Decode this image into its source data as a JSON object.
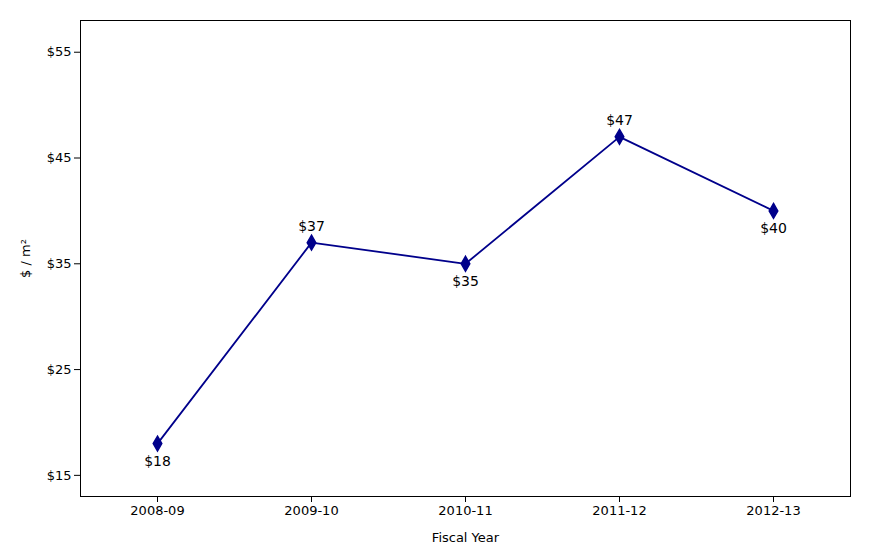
{
  "chart_data": {
    "type": "line",
    "categories": [
      "2008-09",
      "2009-10",
      "2010-11",
      "2011-12",
      "2012-13"
    ],
    "values": [
      18,
      37,
      35,
      47,
      40
    ],
    "value_labels": [
      "$18",
      "$37",
      "$35",
      "$47",
      "$40"
    ],
    "data_labels": true,
    "color": "#00008B",
    "marker": "diamond",
    "xlabel": "Fiscal Year",
    "ylabel": "$ / m²",
    "ylim": [
      13,
      58
    ],
    "yticks": [
      {
        "value": 15,
        "label": "$15"
      },
      {
        "value": 25,
        "label": "$25"
      },
      {
        "value": 35,
        "label": "$35"
      },
      {
        "value": 45,
        "label": "$45"
      },
      {
        "value": 55,
        "label": "$55"
      }
    ],
    "grid": false
  }
}
